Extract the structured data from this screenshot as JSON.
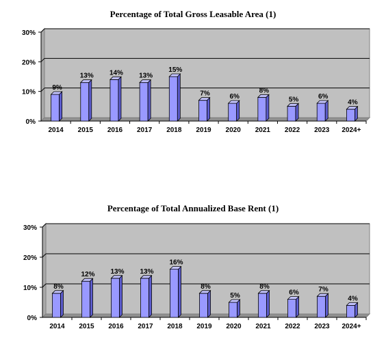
{
  "chart_data": [
    {
      "type": "bar",
      "title": "Percentage of Total Gross Leasable Area (1)",
      "categories": [
        "2014",
        "2015",
        "2016",
        "2017",
        "2018",
        "2019",
        "2020",
        "2021",
        "2022",
        "2023",
        "2024+"
      ],
      "values": [
        9,
        13,
        14,
        13,
        15,
        7,
        6,
        8,
        5,
        6,
        4
      ],
      "data_labels": [
        "9%",
        "13%",
        "14%",
        "13%",
        "15%",
        "7%",
        "6%",
        "8%",
        "5%",
        "6%",
        "4%"
      ],
      "yticks": [
        "0%",
        "10%",
        "20%",
        "30%"
      ],
      "ylim": [
        0,
        30
      ],
      "xlabel": "",
      "ylabel": "",
      "grid": true,
      "legend": "none",
      "bar_color": "#9999ff",
      "bar_side_color": "#5c5ccc",
      "bar_top_color": "#c4c4ff",
      "plot_background": "#c0c0c0"
    },
    {
      "type": "bar",
      "title": "Percentage of Total Annualized Base Rent (1)",
      "categories": [
        "2014",
        "2015",
        "2016",
        "2017",
        "2018",
        "2019",
        "2020",
        "2021",
        "2022",
        "2023",
        "2024+"
      ],
      "values": [
        8,
        12,
        13,
        13,
        16,
        8,
        5,
        8,
        6,
        7,
        4
      ],
      "data_labels": [
        "8%",
        "12%",
        "13%",
        "13%",
        "16%",
        "8%",
        "5%",
        "8%",
        "6%",
        "7%",
        "4%"
      ],
      "yticks": [
        "0%",
        "10%",
        "20%",
        "30%"
      ],
      "ylim": [
        0,
        30
      ],
      "xlabel": "",
      "ylabel": "",
      "grid": true,
      "legend": "none",
      "bar_color": "#9999ff",
      "bar_side_color": "#5c5ccc",
      "bar_top_color": "#c4c4ff",
      "plot_background": "#c0c0c0"
    }
  ]
}
